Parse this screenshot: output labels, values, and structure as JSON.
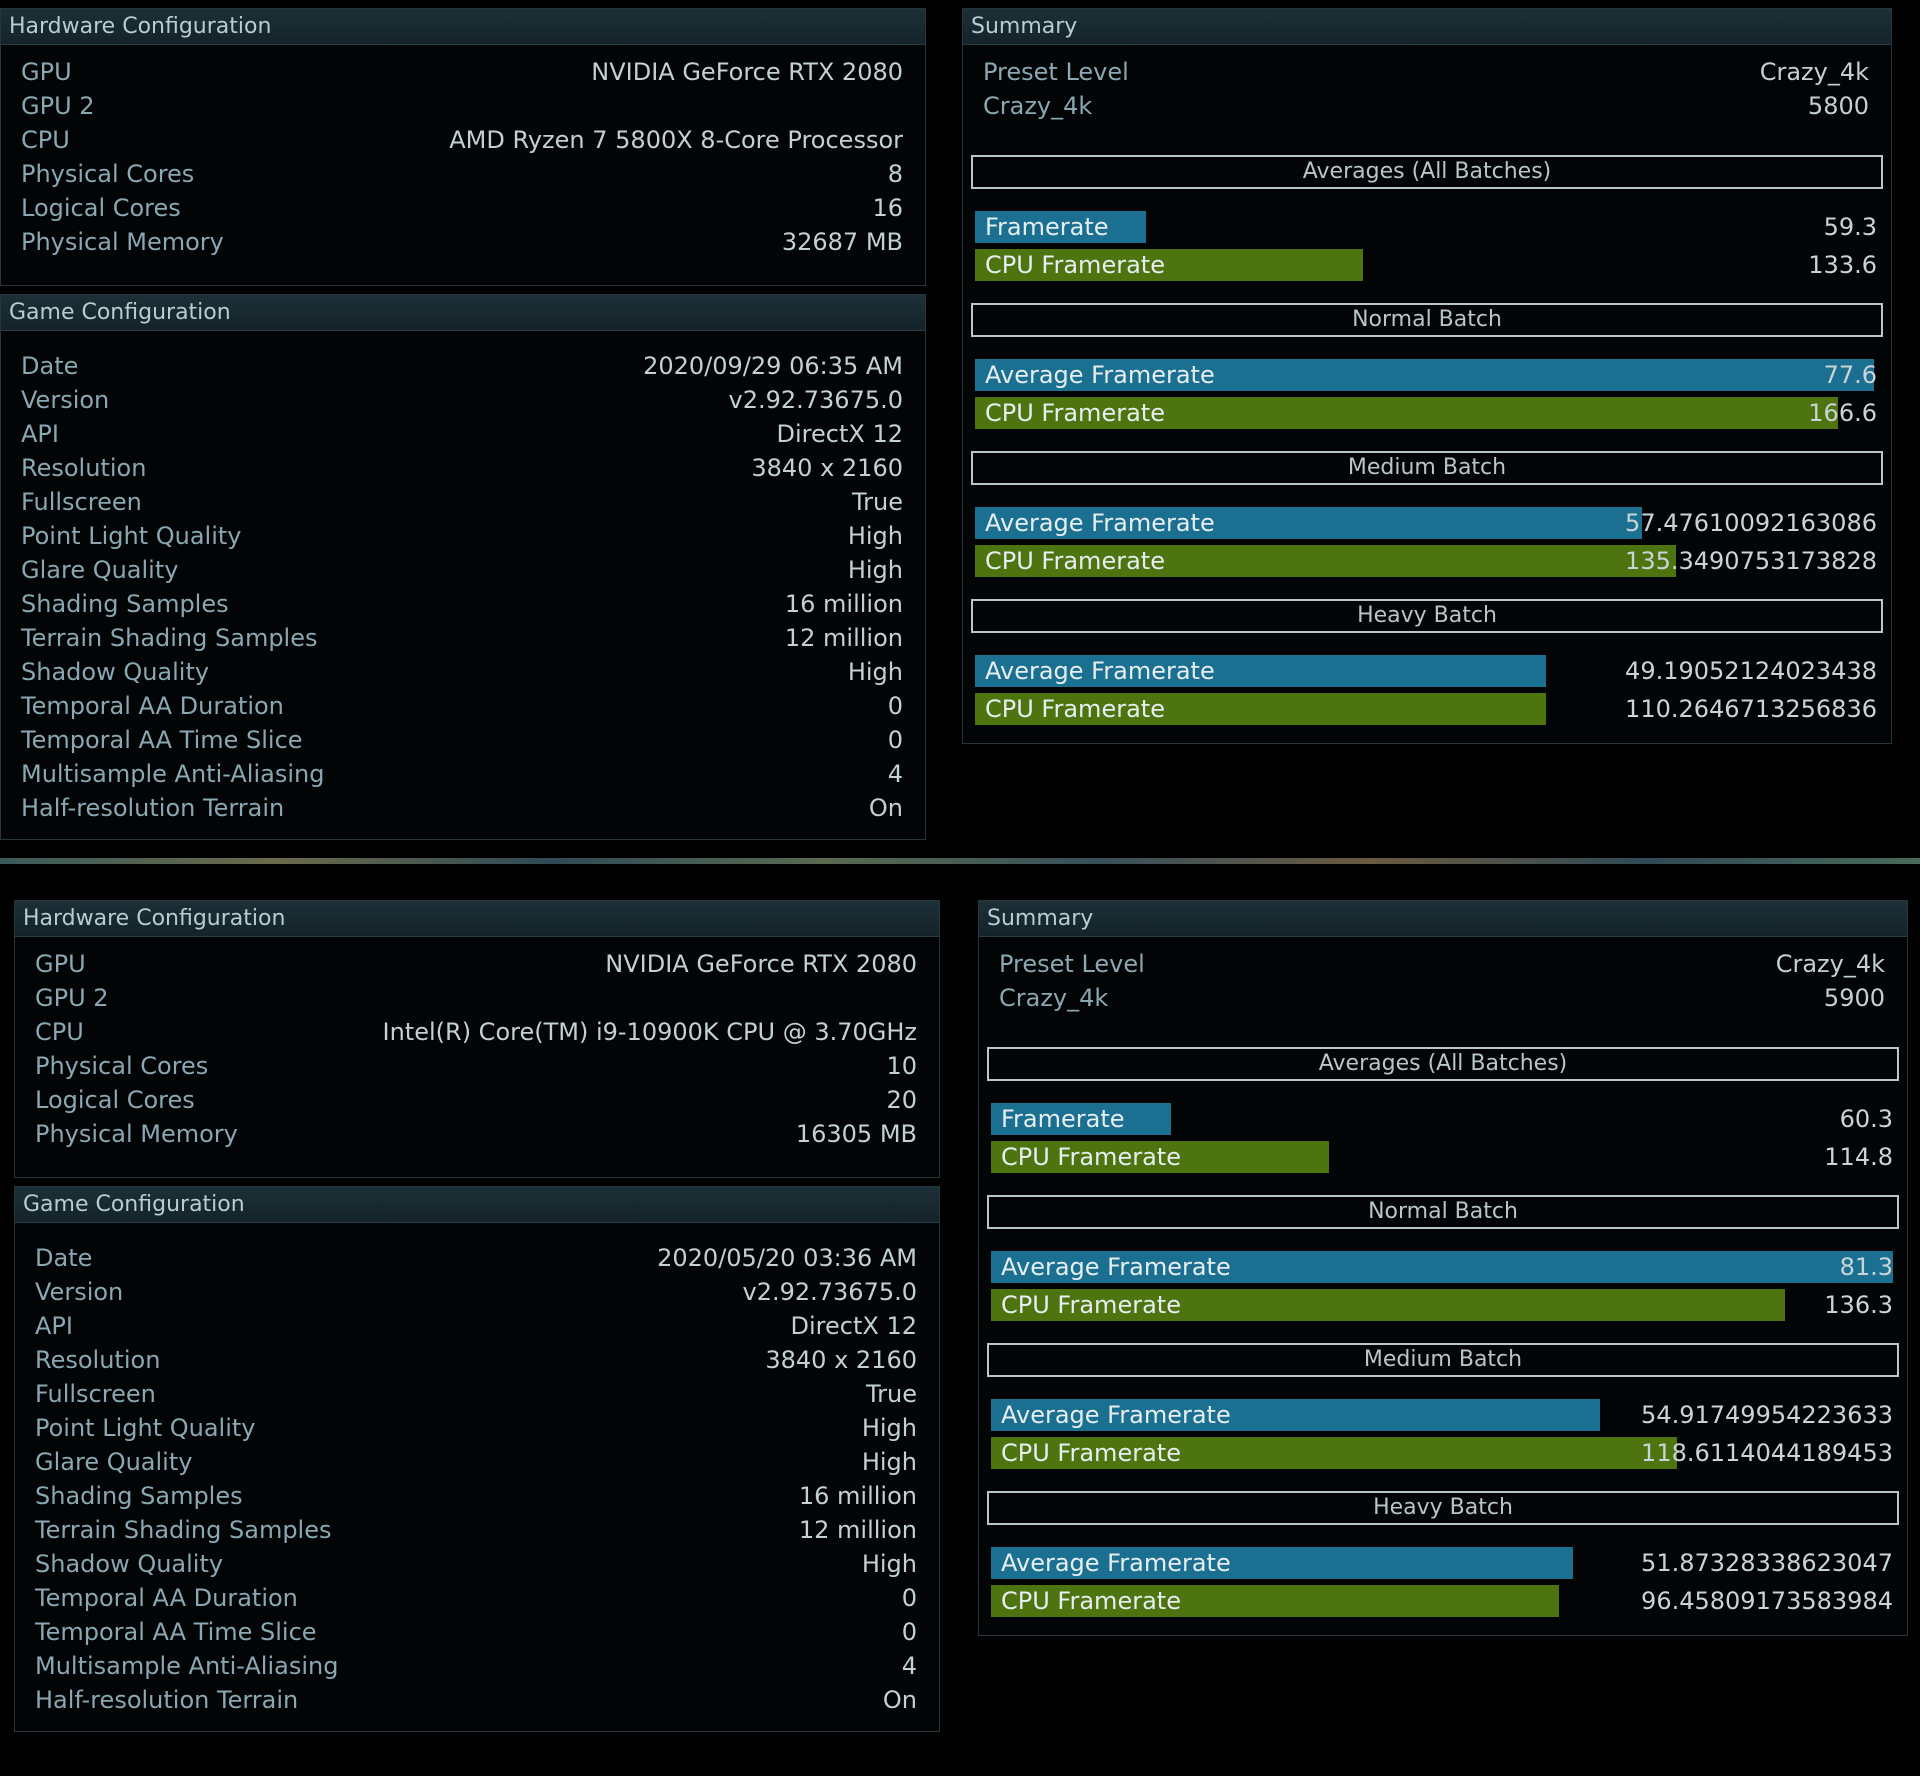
{
  "screens": [
    {
      "hardware": {
        "title": "Hardware Configuration",
        "rows": [
          {
            "k": "GPU",
            "v": "NVIDIA GeForce RTX 2080"
          },
          {
            "k": "GPU 2",
            "v": ""
          },
          {
            "k": "CPU",
            "v": "AMD Ryzen 7 5800X 8-Core Processor"
          },
          {
            "k": "Physical Cores",
            "v": "8"
          },
          {
            "k": "Logical Cores",
            "v": "16"
          },
          {
            "k": "Physical Memory",
            "v": "32687 MB"
          }
        ]
      },
      "game": {
        "title": "Game Configuration",
        "rows": [
          {
            "k": "Date",
            "v": "2020/09/29 06:35 AM"
          },
          {
            "k": "Version",
            "v": "v2.92.73675.0"
          },
          {
            "k": "API",
            "v": "DirectX 12"
          },
          {
            "k": "Resolution",
            "v": "3840 x 2160"
          },
          {
            "k": "Fullscreen",
            "v": "True"
          },
          {
            "k": "Point Light Quality",
            "v": "High"
          },
          {
            "k": "Glare Quality",
            "v": "High"
          },
          {
            "k": "Shading Samples",
            "v": "16 million"
          },
          {
            "k": "Terrain Shading Samples",
            "v": "12 million"
          },
          {
            "k": "Shadow Quality",
            "v": "High"
          },
          {
            "k": "Temporal AA Duration",
            "v": "0"
          },
          {
            "k": "Temporal AA Time Slice",
            "v": "0"
          },
          {
            "k": "Multisample Anti-Aliasing",
            "v": "4"
          },
          {
            "k": "Half-resolution Terrain",
            "v": "On"
          }
        ]
      },
      "summary": {
        "title": "Summary",
        "preset_label": "Preset Level",
        "preset_value": "Crazy_4k",
        "score_label": "Crazy_4k",
        "score_value": "5800",
        "averages": {
          "header": "Averages (All Batches)",
          "framerate_label": "Framerate",
          "framerate_value": "59.3",
          "framerate_fill": 0.19,
          "cpu_label": "CPU Framerate",
          "cpu_value": "133.6",
          "cpu_fill": 0.43
        },
        "batches": [
          {
            "header": "Normal Batch",
            "avg_label": "Average Framerate",
            "avg_value": "77.6",
            "avg_fill": 0.997,
            "cpu_label": "CPU Framerate",
            "cpu_value": "166.6",
            "cpu_fill": 0.957
          },
          {
            "header": "Medium Batch",
            "avg_label": "Average Framerate",
            "avg_value": "57.47610092163086",
            "avg_fill": 0.74,
            "cpu_label": "CPU Framerate",
            "cpu_value": "135.3490753173828",
            "cpu_fill": 0.777
          },
          {
            "header": "Heavy Batch",
            "avg_label": "Average Framerate",
            "avg_value": "49.19052124023438",
            "avg_fill": 0.633,
            "cpu_label": "CPU Framerate",
            "cpu_value": "110.2646713256836",
            "cpu_fill": 0.633
          }
        ]
      }
    },
    {
      "hardware": {
        "title": "Hardware Configuration",
        "rows": [
          {
            "k": "GPU",
            "v": "NVIDIA GeForce RTX 2080"
          },
          {
            "k": "GPU 2",
            "v": ""
          },
          {
            "k": "CPU",
            "v": "Intel(R) Core(TM) i9-10900K CPU @ 3.70GHz"
          },
          {
            "k": "Physical Cores",
            "v": "10"
          },
          {
            "k": "Logical Cores",
            "v": "20"
          },
          {
            "k": "Physical Memory",
            "v": "16305 MB"
          }
        ]
      },
      "game": {
        "title": "Game Configuration",
        "rows": [
          {
            "k": "Date",
            "v": "2020/05/20 03:36 AM"
          },
          {
            "k": "Version",
            "v": "v2.92.73675.0"
          },
          {
            "k": "API",
            "v": "DirectX 12"
          },
          {
            "k": "Resolution",
            "v": "3840 x 2160"
          },
          {
            "k": "Fullscreen",
            "v": "True"
          },
          {
            "k": "Point Light Quality",
            "v": "High"
          },
          {
            "k": "Glare Quality",
            "v": "High"
          },
          {
            "k": "Shading Samples",
            "v": "16 million"
          },
          {
            "k": "Terrain Shading Samples",
            "v": "12 million"
          },
          {
            "k": "Shadow Quality",
            "v": "High"
          },
          {
            "k": "Temporal AA Duration",
            "v": "0"
          },
          {
            "k": "Temporal AA Time Slice",
            "v": "0"
          },
          {
            "k": "Multisample Anti-Aliasing",
            "v": "4"
          },
          {
            "k": "Half-resolution Terrain",
            "v": "On"
          }
        ]
      },
      "summary": {
        "title": "Summary",
        "preset_label": "Preset Level",
        "preset_value": "Crazy_4k",
        "score_label": "Crazy_4k",
        "score_value": "5900",
        "averages": {
          "header": "Averages (All Batches)",
          "framerate_label": "Framerate",
          "framerate_value": "60.3",
          "framerate_fill": 0.2,
          "cpu_label": "CPU Framerate",
          "cpu_value": "114.8",
          "cpu_fill": 0.375
        },
        "batches": [
          {
            "header": "Normal Batch",
            "avg_label": "Average Framerate",
            "avg_value": "81.3",
            "avg_fill": 1.0,
            "cpu_label": "CPU Framerate",
            "cpu_value": "136.3",
            "cpu_fill": 0.88
          },
          {
            "header": "Medium Batch",
            "avg_label": "Average Framerate",
            "avg_value": "54.91749954223633",
            "avg_fill": 0.675,
            "cpu_label": "CPU Framerate",
            "cpu_value": "118.6114044189453",
            "cpu_fill": 0.76
          },
          {
            "header": "Heavy Batch",
            "avg_label": "Average Framerate",
            "avg_value": "51.87328338623047",
            "avg_fill": 0.645,
            "cpu_label": "CPU Framerate",
            "cpu_value": "96.45809173583984",
            "cpu_fill": 0.63
          }
        ]
      }
    }
  ],
  "colors": {
    "framerate_bar": "#1b6f90",
    "cpu_bar": "#4e7410",
    "background": "#000000"
  }
}
